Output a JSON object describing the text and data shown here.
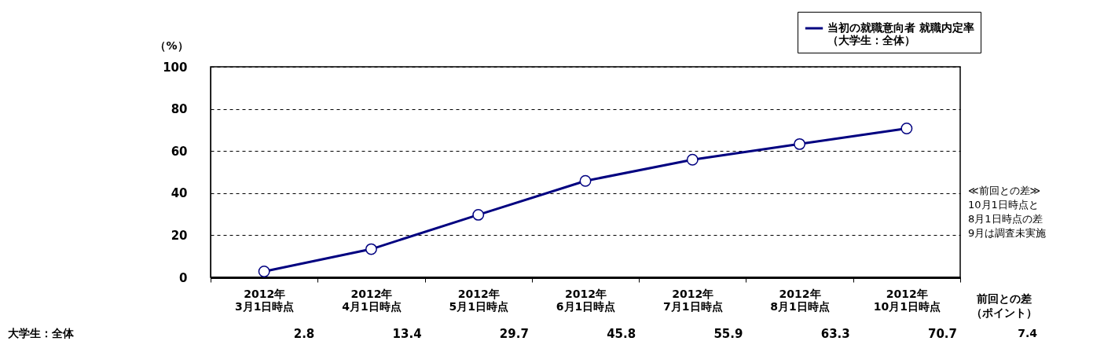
{
  "chart_data": {
    "type": "line",
    "ylabel": "（%）",
    "categories": [
      "2012年\n3月1日時点",
      "2012年\n4月1日時点",
      "2012年\n5月1日時点",
      "2012年\n6月1日時点",
      "2012年\n7月1日時点",
      "2012年\n8月1日時点",
      "2012年\n10月1日時点"
    ],
    "series": [
      {
        "name": "当初の就職意向者 就職内定率（大学生：全体）",
        "color": "#000080",
        "values": [
          2.8,
          13.4,
          29.7,
          45.8,
          55.9,
          63.3,
          70.7
        ]
      }
    ],
    "ylim": [
      0,
      100
    ],
    "yticks": [
      0,
      20,
      40,
      60,
      80,
      100
    ],
    "grid": "y",
    "legend": "top right",
    "marker": "circle",
    "line_style": "solid",
    "data_labels": true,
    "annotations": [
      "大学生：全体",
      "前回との差（ポイント）",
      "7.4",
      "≪前回との差≫\n10月1日時点と\n8月1日時点の差\n9月は調査未実施"
    ]
  }
}
